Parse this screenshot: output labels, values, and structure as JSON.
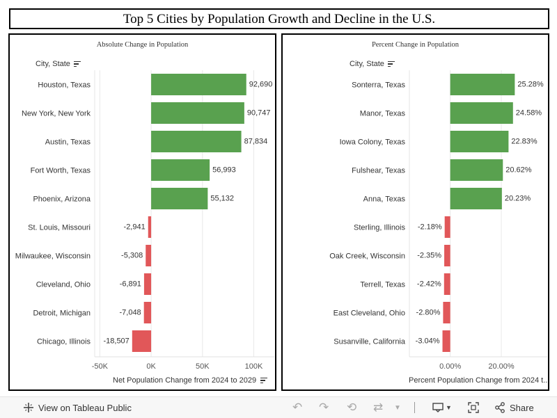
{
  "title": "Top 5 Cities by Population Growth and Decline in the U.S.",
  "chart_data": [
    {
      "type": "bar",
      "orientation": "horizontal",
      "title": "Absolute Change in Population",
      "column_header": "City, State",
      "xlabel": "Net Population Change from 2024 to 2029",
      "categories": [
        "Houston, Texas",
        "New York, New York",
        "Austin, Texas",
        "Fort Worth, Texas",
        "Phoenix, Arizona",
        "St. Louis, Missouri",
        "Milwaukee, Wisconsin",
        "Cleveland, Ohio",
        "Detroit, Michigan",
        "Chicago, Illinois"
      ],
      "values": [
        92690,
        90747,
        87834,
        56993,
        55132,
        -2941,
        -5308,
        -6891,
        -7048,
        -18507
      ],
      "labels": [
        "92,690",
        "90,747",
        "87,834",
        "56,993",
        "55,132",
        "-2,941",
        "-5,308",
        "-6,891",
        "-7,048",
        "-18,507"
      ],
      "xlim": [
        -55000,
        120000
      ],
      "ticks": [
        -50000,
        0,
        50000,
        100000
      ],
      "tick_labels": [
        "-50K",
        "0K",
        "50K",
        "100K"
      ],
      "grid": true,
      "colors": {
        "positive": "#59a14f",
        "negative": "#e15759"
      }
    },
    {
      "type": "bar",
      "orientation": "horizontal",
      "title": "Percent Change in Population",
      "column_header": "City, State",
      "xlabel": "Percent Population Change from 2024 t..",
      "categories": [
        "Sonterra, Texas",
        "Manor, Texas",
        "Iowa Colony, Texas",
        "Fulshear, Texas",
        "Anna, Texas",
        "Sterling, Illinois",
        "Oak Creek, Wisconsin",
        "Terrell, Texas",
        "East Cleveland, Ohio",
        "Susanville, California"
      ],
      "values": [
        25.28,
        24.58,
        22.83,
        20.62,
        20.23,
        -2.18,
        -2.35,
        -2.42,
        -2.8,
        -3.04
      ],
      "labels": [
        "25.28%",
        "24.58%",
        "22.83%",
        "20.62%",
        "20.23%",
        "-2.18%",
        "-2.35%",
        "-2.42%",
        "-2.80%",
        "-3.04%"
      ],
      "xlim": [
        -16,
        38
      ],
      "ticks": [
        0,
        20
      ],
      "tick_labels": [
        "0.00%",
        "20.00%"
      ],
      "grid": true,
      "colors": {
        "positive": "#59a14f",
        "negative": "#e15759"
      }
    }
  ],
  "footer": {
    "view_label": "View on Tableau Public",
    "share_label": "Share"
  },
  "icons": {
    "tableau": "tableau-logo-icon",
    "undo": "undo-icon",
    "redo": "redo-icon",
    "revert": "revert-icon",
    "refresh": "refresh-icon",
    "download": "download-icon",
    "fullscreen": "fullscreen-icon",
    "share": "share-icon"
  }
}
